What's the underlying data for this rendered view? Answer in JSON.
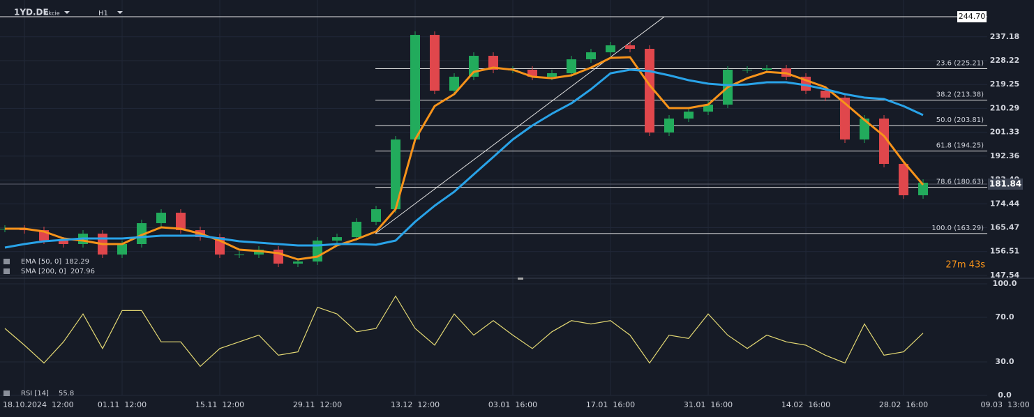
{
  "header": {
    "symbol": "1YD.DE",
    "instrument_type": "Akcie",
    "timeframe": "H1",
    "timer": "27m 43s"
  },
  "chart_data": [
    {
      "type": "candlestick",
      "x": [
        -2,
        0,
        2,
        4,
        6,
        8,
        10,
        12,
        14,
        16,
        18,
        20,
        22,
        24,
        26,
        28,
        30,
        32,
        34,
        36,
        38,
        40,
        42,
        44,
        46,
        48,
        50,
        52,
        54,
        56,
        58,
        60,
        62,
        64,
        66,
        68,
        70,
        72,
        74,
        76,
        78,
        80,
        82,
        84,
        86,
        88,
        90,
        92
      ],
      "close": [
        165.08,
        164.55,
        160.63,
        159.32,
        163.24,
        155.39,
        159.32,
        167.17,
        171.1,
        164.55,
        161.93,
        155.39,
        155.39,
        157.22,
        151.98,
        152.77,
        160.63,
        161.93,
        167.7,
        172.41,
        198.6,
        237.89,
        216.94,
        222.18,
        230.04,
        224.8,
        224.8,
        222.18,
        223.5,
        228.72,
        231.35,
        233.97,
        232.66,
        201.22,
        206.46,
        209.08,
        211.7,
        224.8,
        224.8,
        225.32,
        222.18,
        216.94,
        214.32,
        198.6,
        206.46,
        189.44,
        177.65,
        182.36
      ],
      "up_color": "#22ab5c",
      "down_color": "#e0474c",
      "series": [
        {
          "name": "EMA [50, 0]",
          "legend_value": 182.29,
          "color": "#f7931a",
          "values": [
            165.08,
            165.08,
            164.03,
            161.41,
            160.63,
            159.32,
            159.32,
            162.72,
            165.6,
            165.08,
            163.24,
            160.63,
            157.22,
            156.7,
            155.91,
            153.55,
            154.6,
            158.8,
            161.15,
            164.03,
            172.41,
            198.6,
            211.17,
            215.63,
            224.0,
            225.6,
            224.8,
            222.18,
            221.65,
            222.7,
            225.6,
            229.25,
            229.51,
            219.03,
            210.4,
            210.4,
            211.7,
            218.25,
            221.65,
            224.0,
            223.5,
            220.87,
            218.25,
            212.22,
            205.94,
            199.91,
            190.22,
            181.58
          ]
        },
        {
          "name": "SMA [200, 0]",
          "legend_value": 207.96,
          "color": "#29a3e8",
          "values": [
            158.01,
            159.32,
            160.36,
            160.89,
            161.41,
            161.41,
            161.41,
            161.93,
            162.46,
            162.46,
            162.46,
            161.41,
            160.36,
            159.84,
            159.32,
            158.79,
            158.79,
            159.32,
            159.32,
            159.05,
            160.63,
            167.7,
            173.72,
            178.96,
            185.51,
            192.05,
            198.6,
            203.84,
            208.29,
            212.22,
            217.46,
            223.48,
            224.8,
            224.27,
            222.7,
            220.87,
            219.56,
            219.03,
            219.29,
            220.08,
            220.08,
            219.03,
            217.46,
            215.63,
            214.32,
            213.8,
            211.17,
            207.77
          ]
        }
      ],
      "xlim": [
        -2.5,
        98.57
      ],
      "ylim": [
        146.75,
        251
      ],
      "yticks": [
        {
          "value": 237.18,
          "label": "237.18"
        },
        {
          "value": 228.22,
          "label": "228.22"
        },
        {
          "value": 219.25,
          "label": "219.25"
        },
        {
          "value": 210.29,
          "label": "210.29"
        },
        {
          "value": 201.33,
          "label": "201.33"
        },
        {
          "value": 192.36,
          "label": "192.36"
        },
        {
          "value": 183.4,
          "label": "183.40"
        },
        {
          "value": 174.44,
          "label": "174.44"
        },
        {
          "value": 165.47,
          "label": "165.47"
        },
        {
          "value": 156.51,
          "label": "156.51"
        },
        {
          "value": 147.54,
          "label": "147.54"
        }
      ],
      "last_price": 181.84,
      "fib": {
        "start_x": 35.93,
        "end_x": 65.5,
        "low": 163.29,
        "high": 244.7,
        "levels": [
          {
            "value": 244.7,
            "label": "244.70"
          },
          {
            "value": 225.21,
            "label": "23.6 (225.21)"
          },
          {
            "value": 213.38,
            "label": "38.2 (213.38)"
          },
          {
            "value": 203.81,
            "label": "50.0 (203.81)"
          },
          {
            "value": 194.25,
            "label": "61.8 (194.25)"
          },
          {
            "value": 180.63,
            "label": "78.6 (180.63)"
          },
          {
            "value": 163.29,
            "label": "100.0 (163.29)"
          }
        ]
      },
      "grid": true
    },
    {
      "type": "line",
      "series": [
        {
          "name": "RSI [14]",
          "legend_value": 55.8,
          "color": "#e3d873",
          "values": [
            60,
            45,
            29,
            48,
            73,
            42,
            76,
            76,
            48,
            48,
            26,
            42,
            48,
            54,
            36,
            39,
            79,
            73,
            57,
            60,
            89,
            60,
            45,
            73,
            54,
            67,
            54,
            42,
            57,
            67,
            64,
            67,
            54,
            29,
            54,
            51,
            73,
            54,
            42,
            54,
            48,
            45,
            36,
            29,
            64,
            36,
            39,
            55.8
          ]
        }
      ],
      "xlim": [
        -2.5,
        98.57
      ],
      "ylim": [
        0,
        100
      ],
      "yticks": [
        {
          "value": 100,
          "label": "100.0"
        },
        {
          "value": 70,
          "label": "70.0"
        },
        {
          "value": 30,
          "label": "30.0"
        },
        {
          "value": 0,
          "label": "0.0"
        }
      ],
      "xticks": [
        {
          "value": 0,
          "label": "18.10.2024  12:00"
        },
        {
          "value": 10,
          "label": "01.11  12:00"
        },
        {
          "value": 20,
          "label": "15.11  12:00"
        },
        {
          "value": 30,
          "label": "29.11  12:00"
        },
        {
          "value": 40,
          "label": "13.12  12:00"
        },
        {
          "value": 50,
          "label": "03.01  16:00"
        },
        {
          "value": 60,
          "label": "17.01  16:00"
        },
        {
          "value": 70,
          "label": "31.01  16:00"
        },
        {
          "value": 80,
          "label": "14.02  16:00"
        },
        {
          "value": 90,
          "label": "28.02  16:00"
        },
        {
          "value": 100.4,
          "label": "09.03  13:00"
        }
      ],
      "grid": true
    }
  ]
}
